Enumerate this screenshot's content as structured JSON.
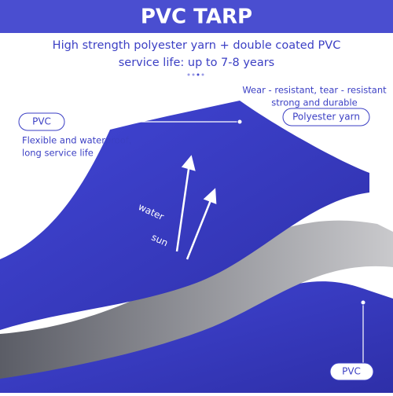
{
  "header": {
    "title": "PVC TARP"
  },
  "subtitle": [
    "High strength polyester yarn + double coated PVC",
    "service life: up to 7-8 years"
  ],
  "right_note": [
    "Wear - resistant, tear - resistant",
    "strong and durable"
  ],
  "labels": {
    "top_layer": "PVC",
    "middle_layer": "Polyester yarn",
    "bottom_layer": "PVC"
  },
  "left_note": [
    "Flexible and waterproof,",
    "long service life"
  ],
  "arrows": {
    "water": "water",
    "sun": "sun"
  }
}
